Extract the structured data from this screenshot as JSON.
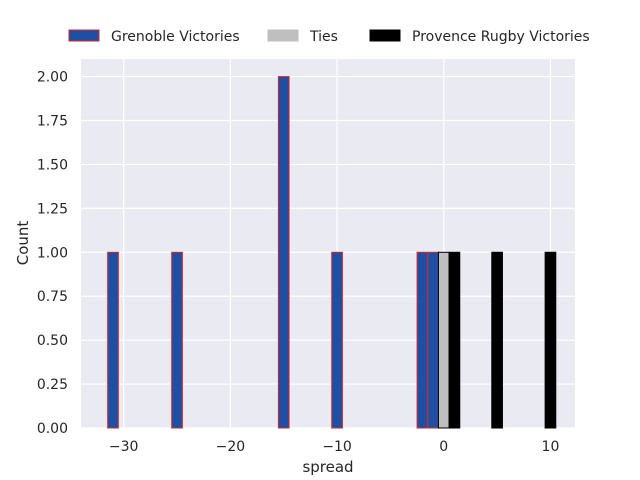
{
  "chart_data": {
    "type": "bar",
    "xlabel": "spread",
    "ylabel": "Count",
    "xlim": [
      -34,
      12.3
    ],
    "ylim": [
      0,
      2.1
    ],
    "bin_width": 1.0,
    "x_ticks": [
      -30,
      -20,
      -10,
      0,
      10
    ],
    "x_tick_labels": [
      "−30",
      "−20",
      "−10",
      "0",
      "10"
    ],
    "y_ticks": [
      0,
      0.25,
      0.5,
      0.75,
      1.0,
      1.25,
      1.5,
      1.75,
      2.0
    ],
    "y_tick_labels": [
      "0.00",
      "0.25",
      "0.50",
      "0.75",
      "1.00",
      "1.25",
      "1.50",
      "1.75",
      "2.00"
    ],
    "grid": true,
    "legend_position": "top",
    "series": [
      {
        "name": "Grenoble Victories",
        "color": "#1f4fa3",
        "edge_color": "#d62728",
        "bars": [
          {
            "x": -31,
            "count": 1
          },
          {
            "x": -25,
            "count": 1
          },
          {
            "x": -15,
            "count": 2
          },
          {
            "x": -10,
            "count": 1
          },
          {
            "x": -2,
            "count": 1
          },
          {
            "x": -1,
            "count": 1
          }
        ]
      },
      {
        "name": "Ties",
        "color": "#bfbfbf",
        "edge_color": "#000000",
        "bars": [
          {
            "x": 0,
            "count": 1
          }
        ]
      },
      {
        "name": "Provence Rugby Victories",
        "color": "#000000",
        "edge_color": "#000000",
        "bars": [
          {
            "x": 1,
            "count": 1
          },
          {
            "x": 5,
            "count": 1
          },
          {
            "x": 10,
            "count": 1
          }
        ]
      }
    ]
  }
}
